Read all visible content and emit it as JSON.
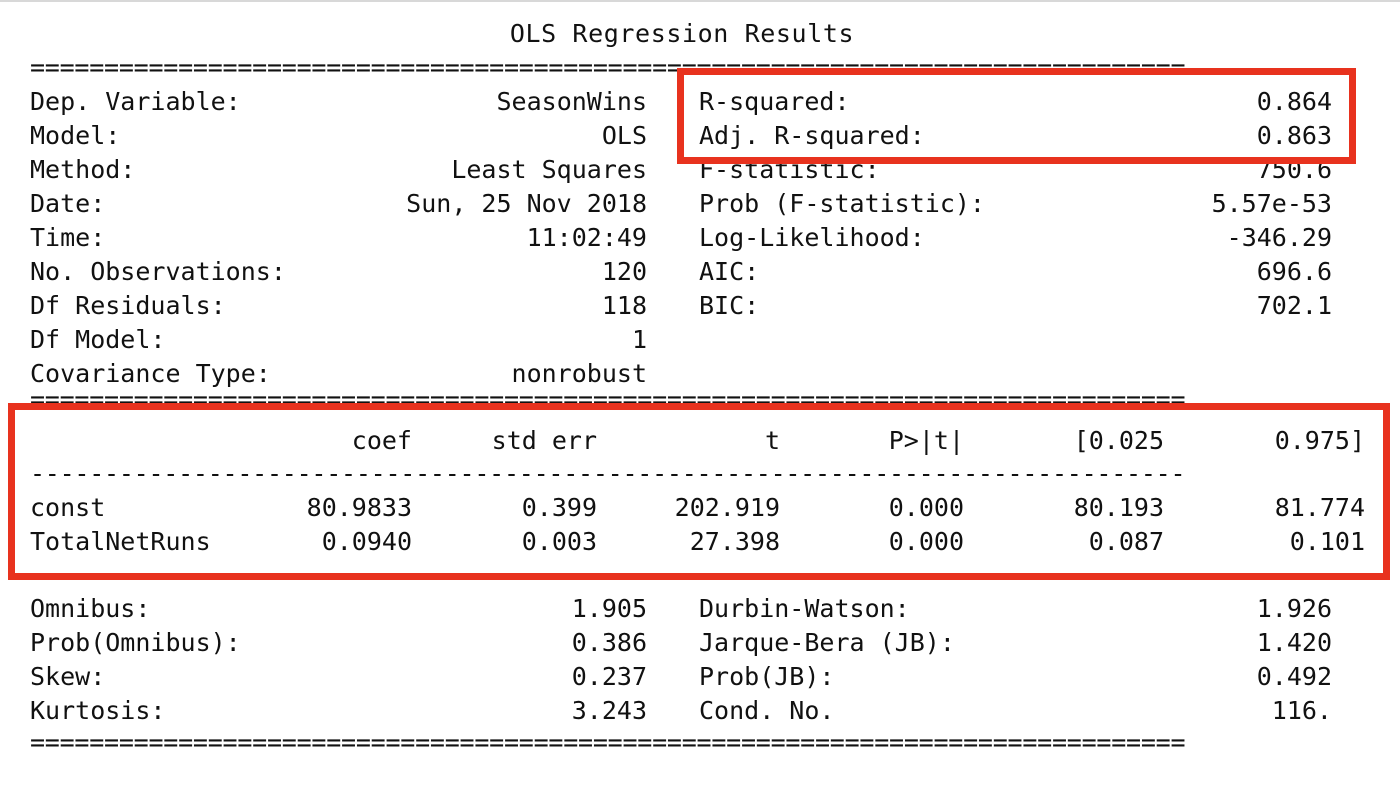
{
  "title": "OLS Regression Results",
  "rules": {
    "double": "==============================================================================",
    "dashed": "------------------------------------------------------------------------------"
  },
  "summary_left": [
    {
      "label": "Dep. Variable:",
      "value": "SeasonWins"
    },
    {
      "label": "Model:",
      "value": "OLS"
    },
    {
      "label": "Method:",
      "value": "Least Squares"
    },
    {
      "label": "Date:",
      "value": "Sun, 25 Nov 2018"
    },
    {
      "label": "Time:",
      "value": "11:02:49"
    },
    {
      "label": "No. Observations:",
      "value": "120"
    },
    {
      "label": "Df Residuals:",
      "value": "118"
    },
    {
      "label": "Df Model:",
      "value": "1"
    },
    {
      "label": "Covariance Type:",
      "value": "nonrobust"
    }
  ],
  "summary_right": [
    {
      "label": "R-squared:",
      "value": "0.864"
    },
    {
      "label": "Adj. R-squared:",
      "value": "0.863"
    },
    {
      "label": "F-statistic:",
      "value": "750.6"
    },
    {
      "label": "Prob (F-statistic):",
      "value": "5.57e-53"
    },
    {
      "label": "Log-Likelihood:",
      "value": "-346.29"
    },
    {
      "label": "AIC:",
      "value": "696.6"
    },
    {
      "label": "BIC:",
      "value": "702.1"
    }
  ],
  "coef_table": {
    "headers": [
      "coef",
      "std err",
      "t",
      "P>|t|",
      "[0.025",
      "0.975]"
    ],
    "rows": [
      {
        "name": "const",
        "values": [
          "80.9833",
          "0.399",
          "202.919",
          "0.000",
          "80.193",
          "81.774"
        ]
      },
      {
        "name": "TotalNetRuns",
        "values": [
          "0.0940",
          "0.003",
          "27.398",
          "0.000",
          "0.087",
          "0.101"
        ]
      }
    ]
  },
  "diagnostics_left": [
    {
      "label": "Omnibus:",
      "value": "1.905"
    },
    {
      "label": "Prob(Omnibus):",
      "value": "0.386"
    },
    {
      "label": "Skew:",
      "value": "0.237"
    },
    {
      "label": "Kurtosis:",
      "value": "3.243"
    }
  ],
  "diagnostics_right": [
    {
      "label": "Durbin-Watson:",
      "value": "1.926"
    },
    {
      "label": "Jarque-Bera (JB):",
      "value": "1.420"
    },
    {
      "label": "Prob(JB):",
      "value": "0.492"
    },
    {
      "label": "Cond. No.",
      "value": "116."
    }
  ],
  "colors": {
    "highlight": "#e8321e",
    "text": "#111111"
  }
}
